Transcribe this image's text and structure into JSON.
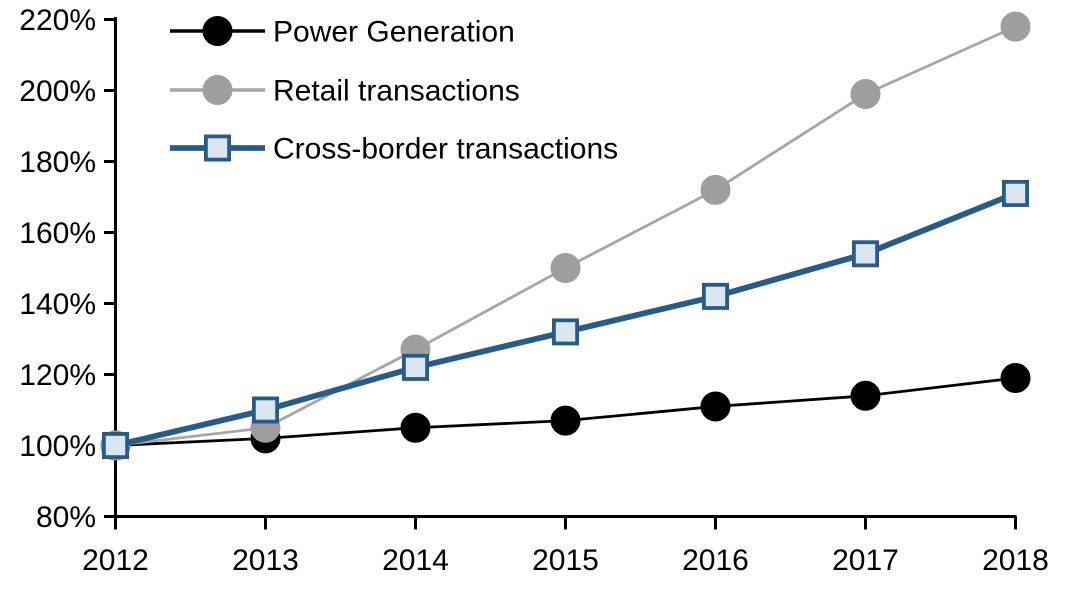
{
  "chart_data": {
    "type": "line",
    "title": "",
    "xlabel": "",
    "ylabel": "",
    "x": [
      2012,
      2013,
      2014,
      2015,
      2016,
      2017,
      2018
    ],
    "xtick_labels": [
      "2012",
      "2013",
      "2014",
      "2015",
      "2016",
      "2017",
      "2018"
    ],
    "ylim": [
      80,
      220
    ],
    "ytick_values": [
      80,
      100,
      120,
      140,
      160,
      180,
      200,
      220
    ],
    "ytick_labels": [
      "80%",
      "100%",
      "120%",
      "140%",
      "160%",
      "180%",
      "200%",
      "220%"
    ],
    "grid": false,
    "legend_position": "top-left",
    "series": [
      {
        "name": "Power Generation",
        "values": [
          100,
          102,
          105,
          107,
          111,
          114,
          119
        ],
        "color": "#000000",
        "marker": "circle",
        "marker_fill": "#000000",
        "marker_stroke": "#000000"
      },
      {
        "name": "Retail transactions",
        "values": [
          100,
          105,
          127,
          150,
          172,
          199,
          218
        ],
        "color": "#a6a6a6",
        "marker": "circle",
        "marker_fill": "#9e9e9e",
        "marker_stroke": "#9e9e9e"
      },
      {
        "name": "Cross-border transactions",
        "values": [
          100,
          110,
          122,
          132,
          142,
          154,
          171
        ],
        "color": "#275c88",
        "marker": "square",
        "marker_fill": "#dce6f1",
        "marker_stroke": "#275c88"
      }
    ],
    "colors": {
      "axis": "#000000",
      "background": "#ffffff",
      "power_generation": "#000000",
      "retail_transactions": "#a6a6a6",
      "cross_border_transactions": "#275c88",
      "square_marker_fill": "#dce6f1"
    }
  }
}
